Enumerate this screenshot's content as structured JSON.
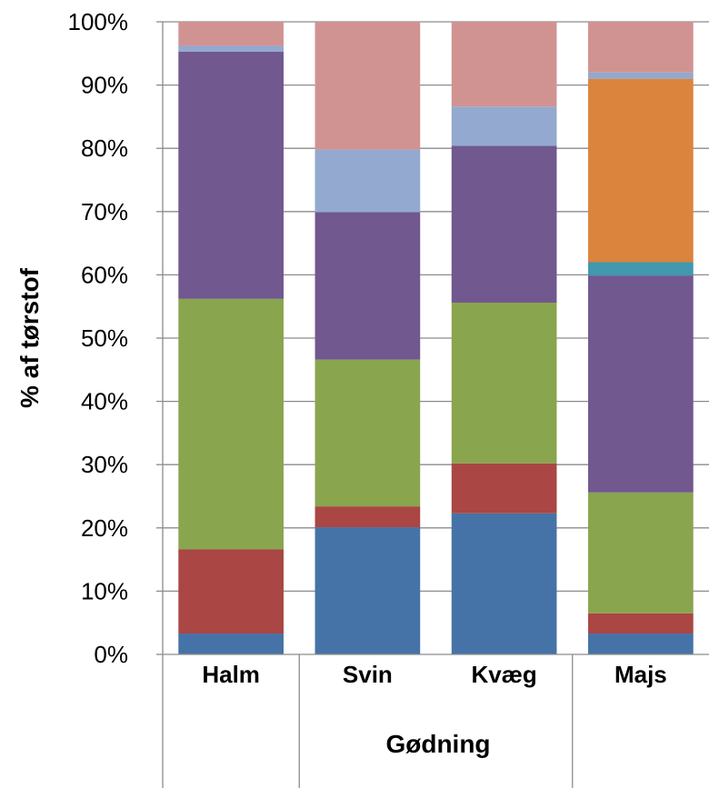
{
  "chart_data": {
    "type": "bar",
    "stacked": true,
    "categories": [
      "Halm",
      "Svin",
      "Kvæg",
      "Majs"
    ],
    "group_label": "Gødning",
    "grouped_categories": [
      "Svin",
      "Kvæg"
    ],
    "ylabel": "% af tørstof",
    "ylim": [
      0,
      100
    ],
    "yticks": [
      "0%",
      "10%",
      "20%",
      "30%",
      "40%",
      "50%",
      "60%",
      "70%",
      "80%",
      "90%",
      "100%"
    ],
    "grid": true,
    "series": [
      {
        "color": "#4573A7",
        "values": [
          3.3,
          20.1,
          22.3,
          3.3
        ]
      },
      {
        "color": "#AA4643",
        "values": [
          13.3,
          3.3,
          7.9,
          3.2
        ]
      },
      {
        "color": "#89A54E",
        "values": [
          39.6,
          23.2,
          25.4,
          19.1
        ]
      },
      {
        "color": "#71588F",
        "values": [
          39.1,
          23.3,
          24.8,
          34.3
        ]
      },
      {
        "color": "#4198AF",
        "values": [
          0,
          0,
          0,
          2.1
        ]
      },
      {
        "color": "#DB843D",
        "values": [
          0,
          0,
          0,
          29.0
        ]
      },
      {
        "color": "#93A9CF",
        "values": [
          0.9,
          9.9,
          6.2,
          1.0
        ]
      },
      {
        "color": "#D19392",
        "values": [
          3.8,
          20.2,
          13.4,
          8.0
        ]
      }
    ]
  }
}
